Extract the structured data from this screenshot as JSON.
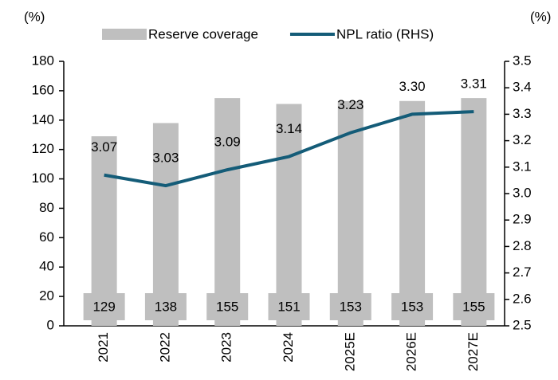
{
  "chart_data": {
    "type": "bar-line",
    "y_label": "(%)",
    "y2_label": "(%)",
    "categories": [
      "2021",
      "2022",
      "2023",
      "2024",
      "2025E",
      "2026E",
      "2027E"
    ],
    "series": [
      {
        "name": "Reserve coverage",
        "type": "bar",
        "color": "#bfbfbf",
        "values": [
          129,
          138,
          155,
          151,
          153,
          153,
          155
        ]
      },
      {
        "name": "NPL ratio (RHS)",
        "type": "line",
        "axis": "y2",
        "color": "#145c78",
        "values": [
          3.07,
          3.03,
          3.09,
          3.14,
          3.23,
          3.3,
          3.31
        ],
        "value_labels": [
          "3.07",
          "3.03",
          "3.09",
          "3.14",
          "3.23",
          "3.30",
          "3.31"
        ]
      }
    ],
    "ylim": [
      0,
      180
    ],
    "yticks": [
      0,
      20,
      40,
      60,
      80,
      100,
      120,
      140,
      160,
      180
    ],
    "y2lim": [
      2.5,
      3.5
    ],
    "y2ticks": [
      2.5,
      2.6,
      2.7,
      2.8,
      2.9,
      {
        "value": 3,
        "label": "3.0"
      },
      3.1,
      3.2,
      3.3,
      3.4,
      3.5
    ],
    "grid": false
  }
}
